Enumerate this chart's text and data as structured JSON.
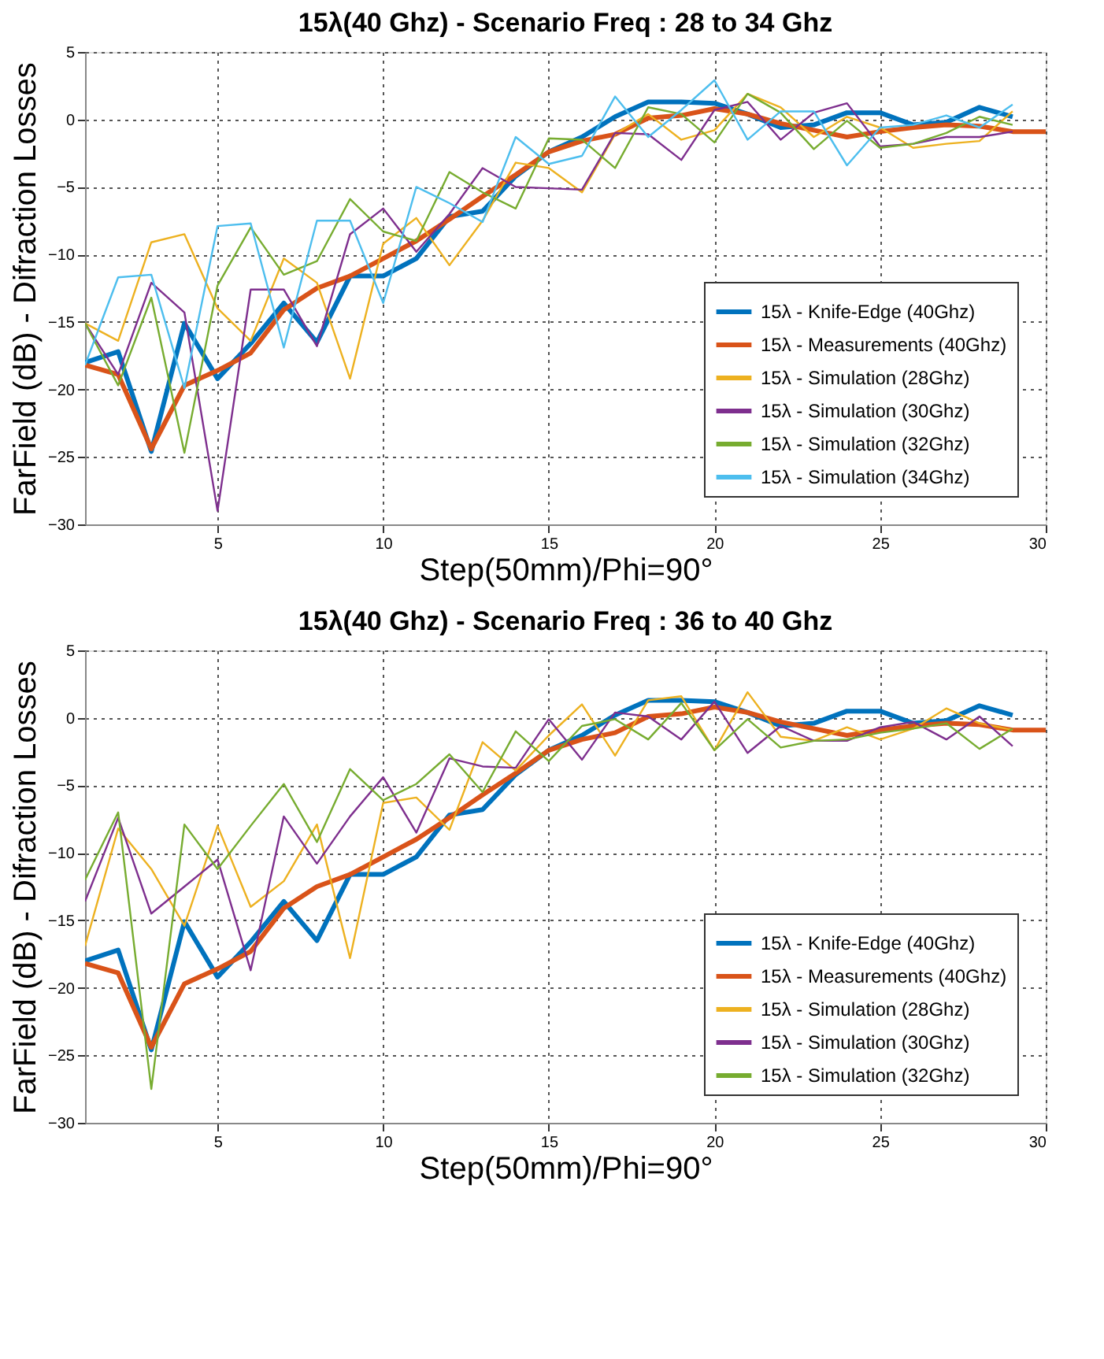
{
  "chart_data": [
    {
      "type": "line",
      "title": "15λ(40 Ghz) - Scenario Freq : 28 to 34 Ghz",
      "xlabel": "Step(50mm)/Phi=90°",
      "ylabel": "FarField (dB) - Difraction Losses",
      "x": [
        1,
        2,
        3,
        4,
        5,
        6,
        7,
        8,
        9,
        10,
        11,
        12,
        13,
        14,
        15,
        16,
        17,
        18,
        19,
        20,
        21,
        22,
        23,
        24,
        25,
        26,
        27,
        28,
        29,
        30
      ],
      "xlim": [
        1,
        30
      ],
      "xticks": [
        5,
        10,
        15,
        20,
        25,
        30
      ],
      "ylim": [
        -30,
        5
      ],
      "yticks": [
        -30,
        -25,
        -20,
        -15,
        -10,
        -5,
        0,
        5
      ],
      "grid": true,
      "legend": "bottom right",
      "line_style": "solid",
      "marker": "none",
      "series": [
        {
          "name": "15λ - Knife-Edge (40Ghz)",
          "color": "#0072bd",
          "values": [
            -18.0,
            -17.2,
            -24.6,
            -15.1,
            -19.2,
            -16.6,
            -13.6,
            -16.5,
            -11.6,
            -11.6,
            -10.3,
            -7.2,
            -6.8,
            -4.2,
            -2.4,
            -1.3,
            0.2,
            1.3,
            1.3,
            1.2,
            0.4,
            -0.6,
            -0.4,
            0.5,
            0.5,
            -0.4,
            -0.2,
            0.9,
            0.2,
            null
          ]
        },
        {
          "name": "15λ - Measurements (40Ghz)",
          "color": "#d95319",
          "values": [
            -18.2,
            -18.9,
            -24.4,
            -19.7,
            -18.6,
            -17.3,
            -14.1,
            -12.5,
            -11.6,
            -10.3,
            -9.0,
            -7.4,
            -5.7,
            -4.1,
            -2.4,
            -1.6,
            -1.1,
            0.1,
            0.3,
            0.8,
            0.4,
            -0.3,
            -0.8,
            -1.3,
            -0.9,
            -0.6,
            -0.4,
            -0.5,
            -0.9,
            -0.9
          ]
        },
        {
          "name": "15λ - Simulation (28Ghz)",
          "color": "#edb120",
          "values": [
            -15.1,
            -16.4,
            -9.1,
            -8.5,
            -14.0,
            -16.4,
            -10.3,
            -12.1,
            -19.2,
            -9.2,
            -7.3,
            -10.8,
            -7.5,
            -3.2,
            -3.6,
            -5.4,
            -1.1,
            0.4,
            -1.5,
            -0.8,
            1.9,
            0.9,
            -1.3,
            0.2,
            -0.6,
            -2.1,
            -1.8,
            -1.6,
            0.6,
            null
          ]
        },
        {
          "name": "15λ - Simulation (30Ghz)",
          "color": "#7e2f8e",
          "values": [
            -15.1,
            -18.9,
            -12.1,
            -14.3,
            -29.0,
            -12.6,
            -12.6,
            -16.8,
            -8.5,
            -6.6,
            -9.8,
            -7.0,
            -3.6,
            -5.0,
            -5.1,
            -5.2,
            -1.0,
            -1.1,
            -3.0,
            0.7,
            1.3,
            -1.5,
            0.5,
            1.2,
            -2.0,
            -1.8,
            -1.3,
            -1.3,
            -0.9,
            null
          ]
        },
        {
          "name": "15λ - Simulation (32Ghz)",
          "color": "#77ac30",
          "values": [
            -15.1,
            -19.7,
            -13.2,
            -24.7,
            -12.3,
            -8.0,
            -11.5,
            -10.5,
            -5.9,
            -8.3,
            -9.0,
            -3.9,
            -5.4,
            -6.6,
            -1.4,
            -1.5,
            -3.6,
            0.9,
            0.4,
            -1.7,
            1.9,
            0.5,
            -2.2,
            -0.1,
            -2.1,
            -1.8,
            -1.0,
            0.2,
            -0.4,
            null
          ]
        },
        {
          "name": "15λ - Simulation (34Ghz)",
          "color": "#4dbeee",
          "values": [
            -18.2,
            -11.7,
            -11.5,
            -19.9,
            -7.9,
            -7.7,
            -16.9,
            -7.5,
            -7.5,
            -13.6,
            -5.0,
            -6.2,
            -7.6,
            -1.3,
            -3.3,
            -2.7,
            1.7,
            -1.3,
            0.7,
            2.9,
            -1.5,
            0.6,
            0.6,
            -3.4,
            -0.6,
            -0.4,
            0.3,
            -0.6,
            1.1,
            null
          ]
        }
      ]
    },
    {
      "type": "line",
      "title": "15λ(40 Ghz) - Scenario Freq : 36 to 40 Ghz",
      "xlabel": "Step(50mm)/Phi=90°",
      "ylabel": "FarField (dB) - Difraction Losses",
      "x": [
        1,
        2,
        3,
        4,
        5,
        6,
        7,
        8,
        9,
        10,
        11,
        12,
        13,
        14,
        15,
        16,
        17,
        18,
        19,
        20,
        21,
        22,
        23,
        24,
        25,
        26,
        27,
        28,
        29,
        30
      ],
      "xlim": [
        1,
        30
      ],
      "xticks": [
        5,
        10,
        15,
        20,
        25,
        30
      ],
      "ylim": [
        -30,
        5
      ],
      "yticks": [
        -30,
        -25,
        -20,
        -15,
        -10,
        -5,
        0,
        5
      ],
      "grid": true,
      "legend": "bottom right",
      "line_style": "solid",
      "marker": "none",
      "series": [
        {
          "name": "15λ - Knife-Edge (40Ghz)",
          "color": "#0072bd",
          "values": [
            -18.0,
            -17.2,
            -24.6,
            -15.1,
            -19.2,
            -16.6,
            -13.6,
            -16.5,
            -11.6,
            -11.6,
            -10.3,
            -7.2,
            -6.8,
            -4.2,
            -2.4,
            -1.3,
            0.2,
            1.3,
            1.3,
            1.2,
            0.4,
            -0.6,
            -0.4,
            0.5,
            0.5,
            -0.4,
            -0.2,
            0.9,
            0.2,
            null
          ]
        },
        {
          "name": "15λ - Measurements (40Ghz)",
          "color": "#d95319",
          "values": [
            -18.2,
            -18.9,
            -24.4,
            -19.7,
            -18.6,
            -17.3,
            -14.1,
            -12.5,
            -11.6,
            -10.3,
            -9.0,
            -7.4,
            -5.7,
            -4.1,
            -2.4,
            -1.6,
            -1.1,
            0.1,
            0.3,
            0.8,
            0.4,
            -0.3,
            -0.8,
            -1.3,
            -0.9,
            -0.6,
            -0.4,
            -0.5,
            -0.9,
            -0.9
          ]
        },
        {
          "name": "15λ - Simulation (28Ghz)",
          "color": "#edb120",
          "values": [
            -16.9,
            -8.2,
            -11.2,
            -15.4,
            -8.0,
            -14.0,
            -12.1,
            -7.9,
            -17.8,
            -6.3,
            -5.9,
            -8.3,
            -1.8,
            -3.9,
            -1.3,
            1.0,
            -2.8,
            1.3,
            1.6,
            -2.4,
            1.9,
            -1.4,
            -1.7,
            -0.7,
            -1.6,
            -0.8,
            0.7,
            -0.4,
            -0.9,
            null
          ]
        },
        {
          "name": "15λ - Simulation (30Ghz)",
          "color": "#7e2f8e",
          "values": [
            -13.6,
            -7.4,
            -14.5,
            -12.5,
            -10.5,
            -18.7,
            -7.3,
            -10.8,
            -7.3,
            -4.4,
            -8.5,
            -3.0,
            -3.6,
            -3.7,
            -0.1,
            -3.1,
            0.4,
            0.1,
            -1.6,
            1.2,
            -2.6,
            -0.6,
            -1.7,
            -1.7,
            -0.7,
            -0.3,
            -1.6,
            0.1,
            -2.1,
            null
          ]
        },
        {
          "name": "15λ - Simulation (32Ghz)",
          "color": "#77ac30",
          "values": [
            -12.0,
            -7.0,
            -27.5,
            -7.9,
            -11.2,
            -8.0,
            -4.9,
            -9.2,
            -3.8,
            -6.1,
            -4.9,
            -2.7,
            -5.5,
            -1.0,
            -3.2,
            -0.6,
            -0.1,
            -1.6,
            1.1,
            -2.4,
            -0.1,
            -2.2,
            -1.7,
            -1.6,
            -1.1,
            -0.8,
            -0.4,
            -2.3,
            -0.8,
            null
          ]
        }
      ]
    }
  ]
}
